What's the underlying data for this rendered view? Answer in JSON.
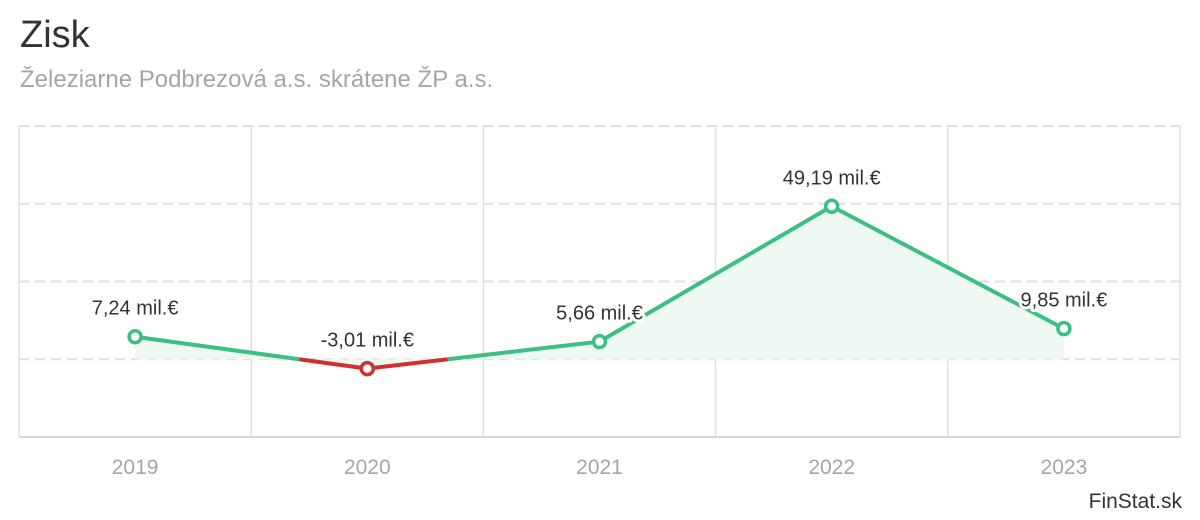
{
  "chart_data": {
    "type": "area",
    "title": "Zisk",
    "subtitle": "Železiarne Podbrezová a.s. skrátene ŽP a.s.",
    "categories": [
      "2019",
      "2020",
      "2021",
      "2022",
      "2023"
    ],
    "series": [
      {
        "name": "Zisk",
        "values": [
          7.24,
          -3.01,
          5.66,
          49.19,
          9.85
        ],
        "labels": [
          "7,24 mil.€",
          "-3,01 mil.€",
          "5,66 mil.€",
          "49,19 mil.€",
          "9,85 mil.€"
        ]
      }
    ],
    "unit": "mil.€",
    "ylim": [
      -25,
      75
    ],
    "grid": true,
    "colors": {
      "positive": "#3cbf84",
      "negative": "#d32f2f",
      "fill": "#eef9f4",
      "grid": "#e0e0e0",
      "axis_label": "#a6a6a6",
      "data_label": "#333333"
    }
  },
  "credit": "FinStat.sk"
}
